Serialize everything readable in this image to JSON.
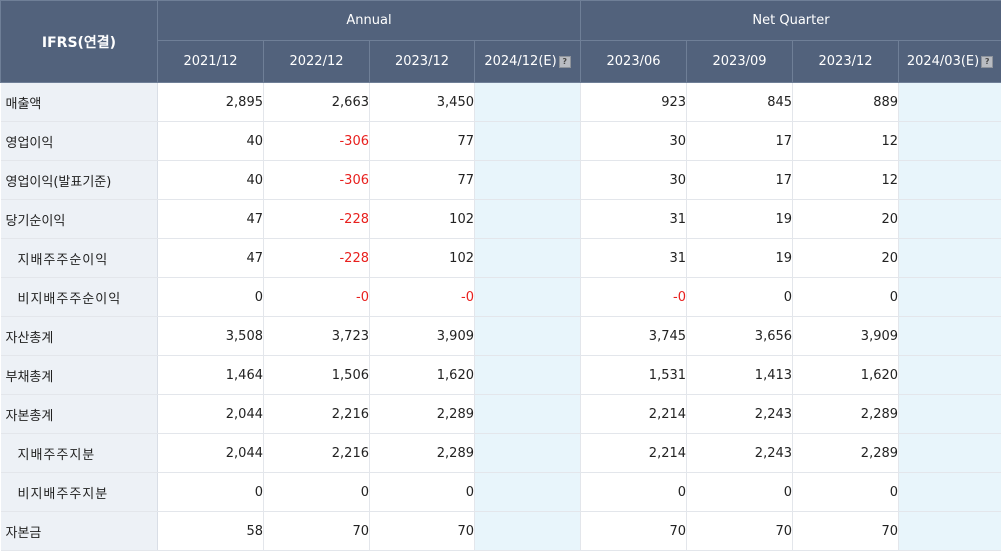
{
  "header": {
    "corner_label": "IFRS(연결)",
    "group_annual": "Annual",
    "group_quarter": "Net Quarter",
    "columns": [
      "2021/12",
      "2022/12",
      "2023/12",
      "2024/12(E)",
      "2023/06",
      "2023/09",
      "2023/12",
      "2024/03(E)"
    ],
    "help_icon": "?"
  },
  "rows": [
    {
      "label": "매출액",
      "values": [
        "2,895",
        "2,663",
        "3,450",
        "",
        "923",
        "845",
        "889",
        ""
      ]
    },
    {
      "label": "영업이익",
      "values": [
        "40",
        "-306",
        "77",
        "",
        "30",
        "17",
        "12",
        ""
      ]
    },
    {
      "label": "영업이익(발표기준)",
      "values": [
        "40",
        "-306",
        "77",
        "",
        "30",
        "17",
        "12",
        ""
      ]
    },
    {
      "label": "당기순이익",
      "values": [
        "47",
        "-228",
        "102",
        "",
        "31",
        "19",
        "20",
        ""
      ]
    },
    {
      "label": "지배주주순이익",
      "values": [
        "47",
        "-228",
        "102",
        "",
        "31",
        "19",
        "20",
        ""
      ]
    },
    {
      "label": "비지배주주순이익",
      "values": [
        "0",
        "-0",
        "-0",
        "",
        "-0",
        "0",
        "0",
        ""
      ]
    },
    {
      "label": "자산총계",
      "values": [
        "3,508",
        "3,723",
        "3,909",
        "",
        "3,745",
        "3,656",
        "3,909",
        ""
      ]
    },
    {
      "label": "부채총계",
      "values": [
        "1,464",
        "1,506",
        "1,620",
        "",
        "1,531",
        "1,413",
        "1,620",
        ""
      ]
    },
    {
      "label": "자본총계",
      "values": [
        "2,044",
        "2,216",
        "2,289",
        "",
        "2,214",
        "2,243",
        "2,289",
        ""
      ]
    },
    {
      "label": "지배주주지분",
      "values": [
        "2,044",
        "2,216",
        "2,289",
        "",
        "2,214",
        "2,243",
        "2,289",
        ""
      ]
    },
    {
      "label": "비지배주주지분",
      "values": [
        "0",
        "0",
        "0",
        "",
        "0",
        "0",
        "0",
        ""
      ]
    },
    {
      "label": "자본금",
      "values": [
        "58",
        "70",
        "70",
        "",
        "70",
        "70",
        "70",
        ""
      ]
    }
  ],
  "colors": {
    "header_bg": "#52627c",
    "label_bg": "#edf1f6",
    "estimate_bg": "#e8f5fb",
    "negative": "#e8201e"
  }
}
